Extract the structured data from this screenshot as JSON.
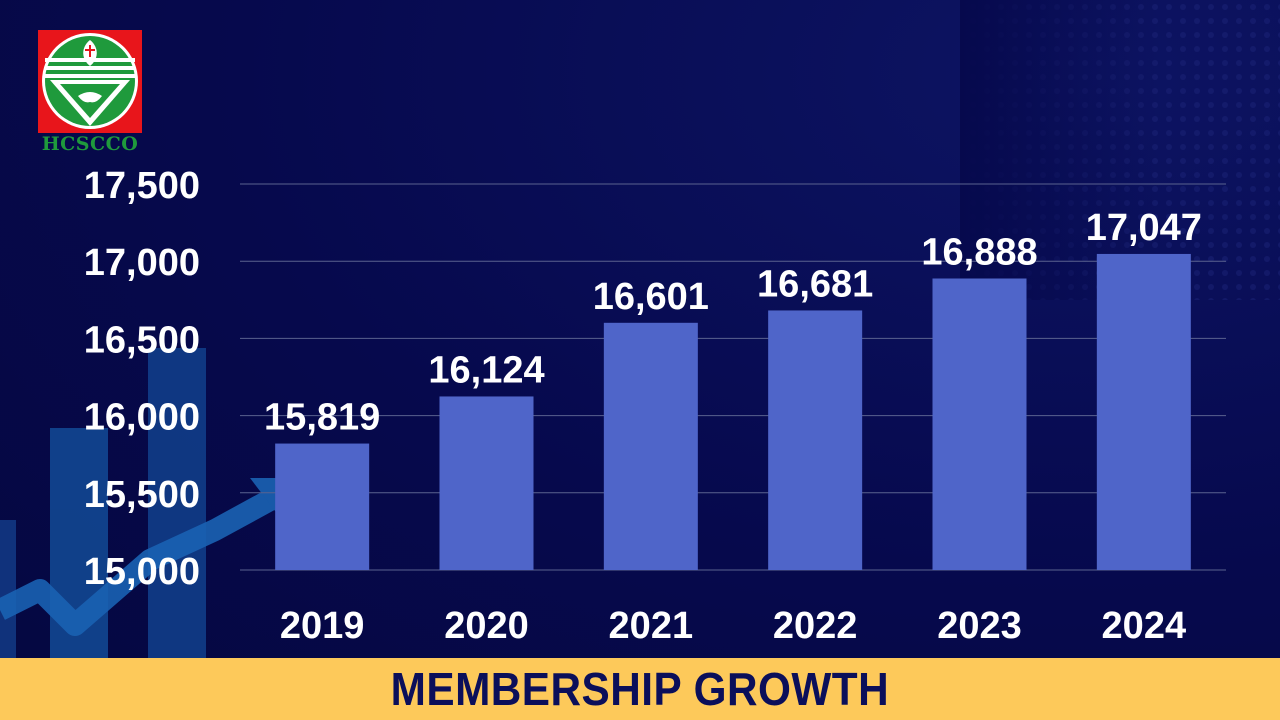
{
  "logo": {
    "text": "HCSCCO"
  },
  "banner": {
    "title": "MEMBERSHIP GROWTH"
  },
  "colors": {
    "bar": "#4f65c9",
    "background": "#06094d",
    "banner": "#fdc95a",
    "banner_text": "#0b0f5a",
    "grid": "#5a628f"
  },
  "chart_data": {
    "type": "bar",
    "categories": [
      "2019",
      "2020",
      "2021",
      "2022",
      "2023",
      "2024"
    ],
    "values": [
      15819,
      16124,
      16601,
      16681,
      16888,
      17047
    ],
    "value_labels": [
      "15,819",
      "16,124",
      "16,601",
      "16,681",
      "16,888",
      "17,047"
    ],
    "y_ticks": [
      15000,
      15500,
      16000,
      16500,
      17000,
      17500
    ],
    "y_tick_labels": [
      "15,000",
      "15,500",
      "16,000",
      "16,500",
      "17,000",
      "17,500"
    ],
    "ylim": [
      15000,
      17500
    ],
    "grid": true,
    "title": "",
    "xlabel": "",
    "ylabel": ""
  }
}
